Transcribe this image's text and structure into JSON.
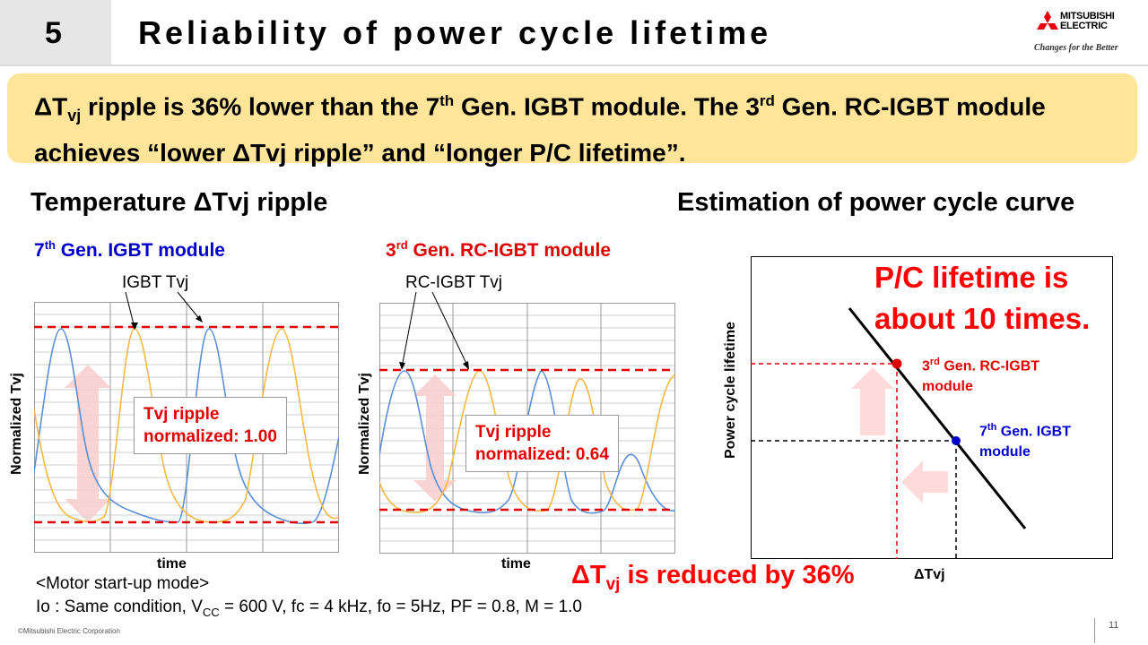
{
  "header": {
    "section_number": "5",
    "title": "Reliability of power cycle lifetime",
    "logo_line1": "MITSUBISHI",
    "logo_line2": "ELECTRIC",
    "tagline": "Changes for the Better"
  },
  "banner": {
    "p1": "ΔT",
    "p1_sub": "vj",
    "p2": " ripple is 36% lower than the 7",
    "p2_sup": "th",
    "p3": " Gen. IGBT module. The 3",
    "p3_sup": "rd",
    "p4": " Gen. RC-IGBT module achieves “lower ΔTvj ripple” and “longer P/C lifetime”."
  },
  "left_section": {
    "heading": "Temperature ΔTvj ripple",
    "chart1": {
      "title_num": "7",
      "title_sup": "th",
      "title_rest": " Gen. IGBT module",
      "curve_label": "IGBT Tvj",
      "ripple_line1": "Tvj ripple",
      "ripple_line2": "normalized: 1.00",
      "xlabel": "time",
      "ylabel": "Normalized Tvj"
    },
    "chart2": {
      "title_num": "3",
      "title_sup": "rd",
      "title_rest": " Gen. RC-IGBT module",
      "curve_label": "RC-IGBT Tvj",
      "ripple_line1": "Tvj ripple",
      "ripple_line2": "normalized: 0.64",
      "xlabel": "time",
      "ylabel": "Normalized Tvj"
    }
  },
  "right_section": {
    "heading": "Estimation of power cycle curve",
    "claim_line1": "P/C lifetime is",
    "claim_line2": "about 10 times.",
    "ylabel": "Power cycle lifetime",
    "xlabel": "ΔTvj",
    "point_rc_num": "3",
    "point_rc_sup": "rd",
    "point_rc_rest": " Gen. RC-IGBT",
    "point_rc_line2": "module",
    "point_igbt_num": "7",
    "point_igbt_sup": "th",
    "point_igbt_rest": " Gen. IGBT",
    "point_igbt_line2": "module",
    "reduction_p1": "ΔT",
    "reduction_sub": "vj",
    "reduction_p2": " is reduced by 36%"
  },
  "footer": {
    "mode": "<Motor start-up mode>",
    "cond_p1": "Io : Same condition, V",
    "cond_sub": "CC",
    "cond_p2": " = 600 V, fc = 4 kHz, fo = 5Hz, PF = 0.8, M = 1.0",
    "copyright": "©Mitsubishi Electric Corporation",
    "page_number": "11"
  },
  "colors": {
    "banner_bg": "#ffe599",
    "accent_red": "#e00000",
    "accent_blue": "#0000cc",
    "curve_blue": "#5b8fd6",
    "curve_orange": "#f5b843"
  }
}
